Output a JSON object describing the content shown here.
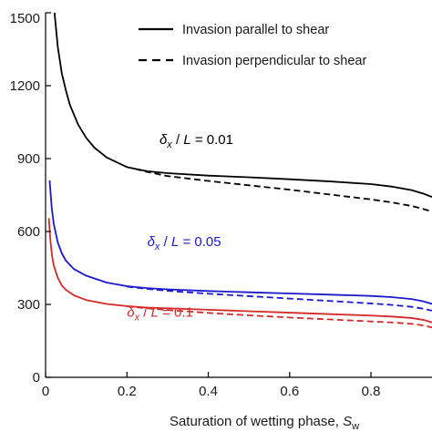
{
  "chart_data": {
    "type": "line",
    "title": "",
    "xlabel_main": "Saturation of wetting phase, ",
    "xlabel_symbol": "S",
    "xlabel_sub": "w",
    "ylabel": "",
    "xlim": [
      0,
      0.95
    ],
    "ylim": [
      0,
      1500
    ],
    "xticks": [
      0,
      0.2,
      0.4,
      0.6,
      0.8
    ],
    "xtick_labels": [
      "0",
      "0.2",
      "0.4",
      "0.6",
      "0.8"
    ],
    "yticks": [
      0,
      300,
      600,
      900,
      1200,
      1500
    ],
    "ytick_labels": [
      "0",
      "300",
      "600",
      "900",
      "1200",
      "1500"
    ],
    "grid": false,
    "legend": {
      "placement": "top-right",
      "entries": [
        {
          "label": "Invasion parallel to shear",
          "style": "solid"
        },
        {
          "label": "Invasion perpendicular to shear",
          "style": "dashed"
        }
      ]
    },
    "annotations": [
      {
        "symbol": "δ",
        "sub": "x",
        "rest": " / ",
        "italic2": "L",
        "value": " = 0.01",
        "color": "#000000",
        "at": [
          0.28,
          960
        ]
      },
      {
        "symbol": "δ",
        "sub": "x",
        "rest": " / ",
        "italic2": "L",
        "value": " = 0.05",
        "color": "#1a1acc",
        "at": [
          0.25,
          540
        ]
      },
      {
        "symbol": "δ",
        "sub": "x",
        "rest": " / ",
        "italic2": "L",
        "value": " = 0.1",
        "color": "#d42a2a",
        "at": [
          0.2,
          250
        ]
      }
    ],
    "series": [
      {
        "group": "0.01",
        "style": "solid",
        "color": "#000000",
        "x": [
          0.022,
          0.03,
          0.04,
          0.05,
          0.06,
          0.08,
          0.1,
          0.12,
          0.15,
          0.2,
          0.25,
          0.3,
          0.4,
          0.5,
          0.6,
          0.7,
          0.8,
          0.85,
          0.9,
          0.93,
          0.95
        ],
        "y": [
          1500,
          1360,
          1250,
          1180,
          1120,
          1040,
          985,
          945,
          905,
          865,
          848,
          840,
          830,
          823,
          815,
          806,
          795,
          785,
          770,
          755,
          742
        ]
      },
      {
        "group": "0.01",
        "style": "dashed",
        "color": "#000000",
        "x": [
          0.22,
          0.25,
          0.3,
          0.4,
          0.5,
          0.6,
          0.7,
          0.8,
          0.85,
          0.9,
          0.93,
          0.95
        ],
        "y": [
          858,
          845,
          828,
          808,
          790,
          772,
          752,
          732,
          720,
          705,
          692,
          682
        ]
      },
      {
        "group": "0.05",
        "style": "solid",
        "color": "#1a1acc",
        "x": [
          0.01,
          0.015,
          0.02,
          0.03,
          0.04,
          0.05,
          0.07,
          0.1,
          0.15,
          0.2,
          0.25,
          0.3,
          0.4,
          0.5,
          0.6,
          0.7,
          0.8,
          0.85,
          0.9,
          0.93,
          0.95
        ],
        "y": [
          810,
          700,
          632,
          555,
          510,
          480,
          445,
          418,
          390,
          375,
          367,
          362,
          355,
          350,
          345,
          340,
          335,
          330,
          322,
          312,
          302
        ]
      },
      {
        "group": "0.05",
        "style": "dashed",
        "color": "#1a1acc",
        "x": [
          0.2,
          0.25,
          0.3,
          0.4,
          0.5,
          0.6,
          0.7,
          0.8,
          0.85,
          0.9,
          0.93,
          0.95
        ],
        "y": [
          373,
          364,
          356,
          344,
          334,
          324,
          314,
          304,
          298,
          290,
          282,
          274
        ]
      },
      {
        "group": "0.1",
        "style": "solid",
        "color": "#d42a2a",
        "x": [
          0.008,
          0.012,
          0.016,
          0.02,
          0.03,
          0.04,
          0.05,
          0.07,
          0.1,
          0.15,
          0.2,
          0.25,
          0.3,
          0.4,
          0.5,
          0.6,
          0.7,
          0.8,
          0.85,
          0.9,
          0.93,
          0.95
        ],
        "y": [
          655,
          560,
          500,
          460,
          410,
          378,
          360,
          337,
          318,
          302,
          293,
          287,
          284,
          278,
          272,
          266,
          260,
          254,
          250,
          244,
          236,
          226
        ]
      },
      {
        "group": "0.1",
        "style": "dashed",
        "color": "#d42a2a",
        "x": [
          0.2,
          0.25,
          0.3,
          0.4,
          0.5,
          0.6,
          0.7,
          0.8,
          0.85,
          0.9,
          0.93,
          0.95
        ],
        "y": [
          292,
          284,
          277,
          265,
          255,
          246,
          238,
          230,
          226,
          220,
          213,
          205
        ]
      }
    ]
  }
}
